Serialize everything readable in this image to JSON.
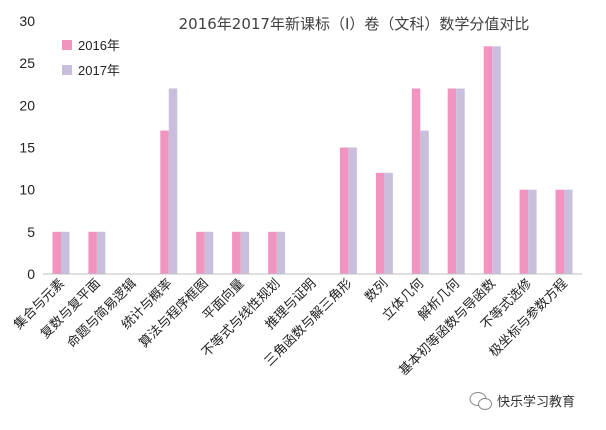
{
  "chart_data": {
    "type": "bar",
    "title": "2016年2017年新课标（Ⅰ）卷（文科）数学分值对比",
    "xlabel": "",
    "ylabel": "",
    "ylim": [
      0,
      30
    ],
    "yticks": [
      0,
      5,
      10,
      15,
      20,
      25,
      30
    ],
    "grid": false,
    "legend_position": "top-left",
    "categories": [
      "集合与元素",
      "复数与复平面",
      "命题与简易逻辑",
      "统计与概率",
      "算法与程序框图",
      "平面向量",
      "不等式与线性规划",
      "推理与证明",
      "三角函数与解三角形",
      "数列",
      "立体几何",
      "解析几何",
      "基本初等函数与导函数",
      "不等式选修",
      "极坐标与参数方程"
    ],
    "series": [
      {
        "name": "2016年",
        "color": "#f294c0",
        "values": [
          5,
          5,
          0,
          17,
          5,
          5,
          5,
          0,
          15,
          12,
          22,
          22,
          27,
          10,
          10
        ]
      },
      {
        "name": "2017年",
        "color": "#c9bfdc",
        "values": [
          5,
          5,
          0,
          22,
          5,
          5,
          5,
          0,
          15,
          12,
          17,
          22,
          27,
          10,
          10
        ]
      }
    ]
  },
  "watermark": {
    "text": "快乐学习教育",
    "icon": "wechat-icon"
  }
}
